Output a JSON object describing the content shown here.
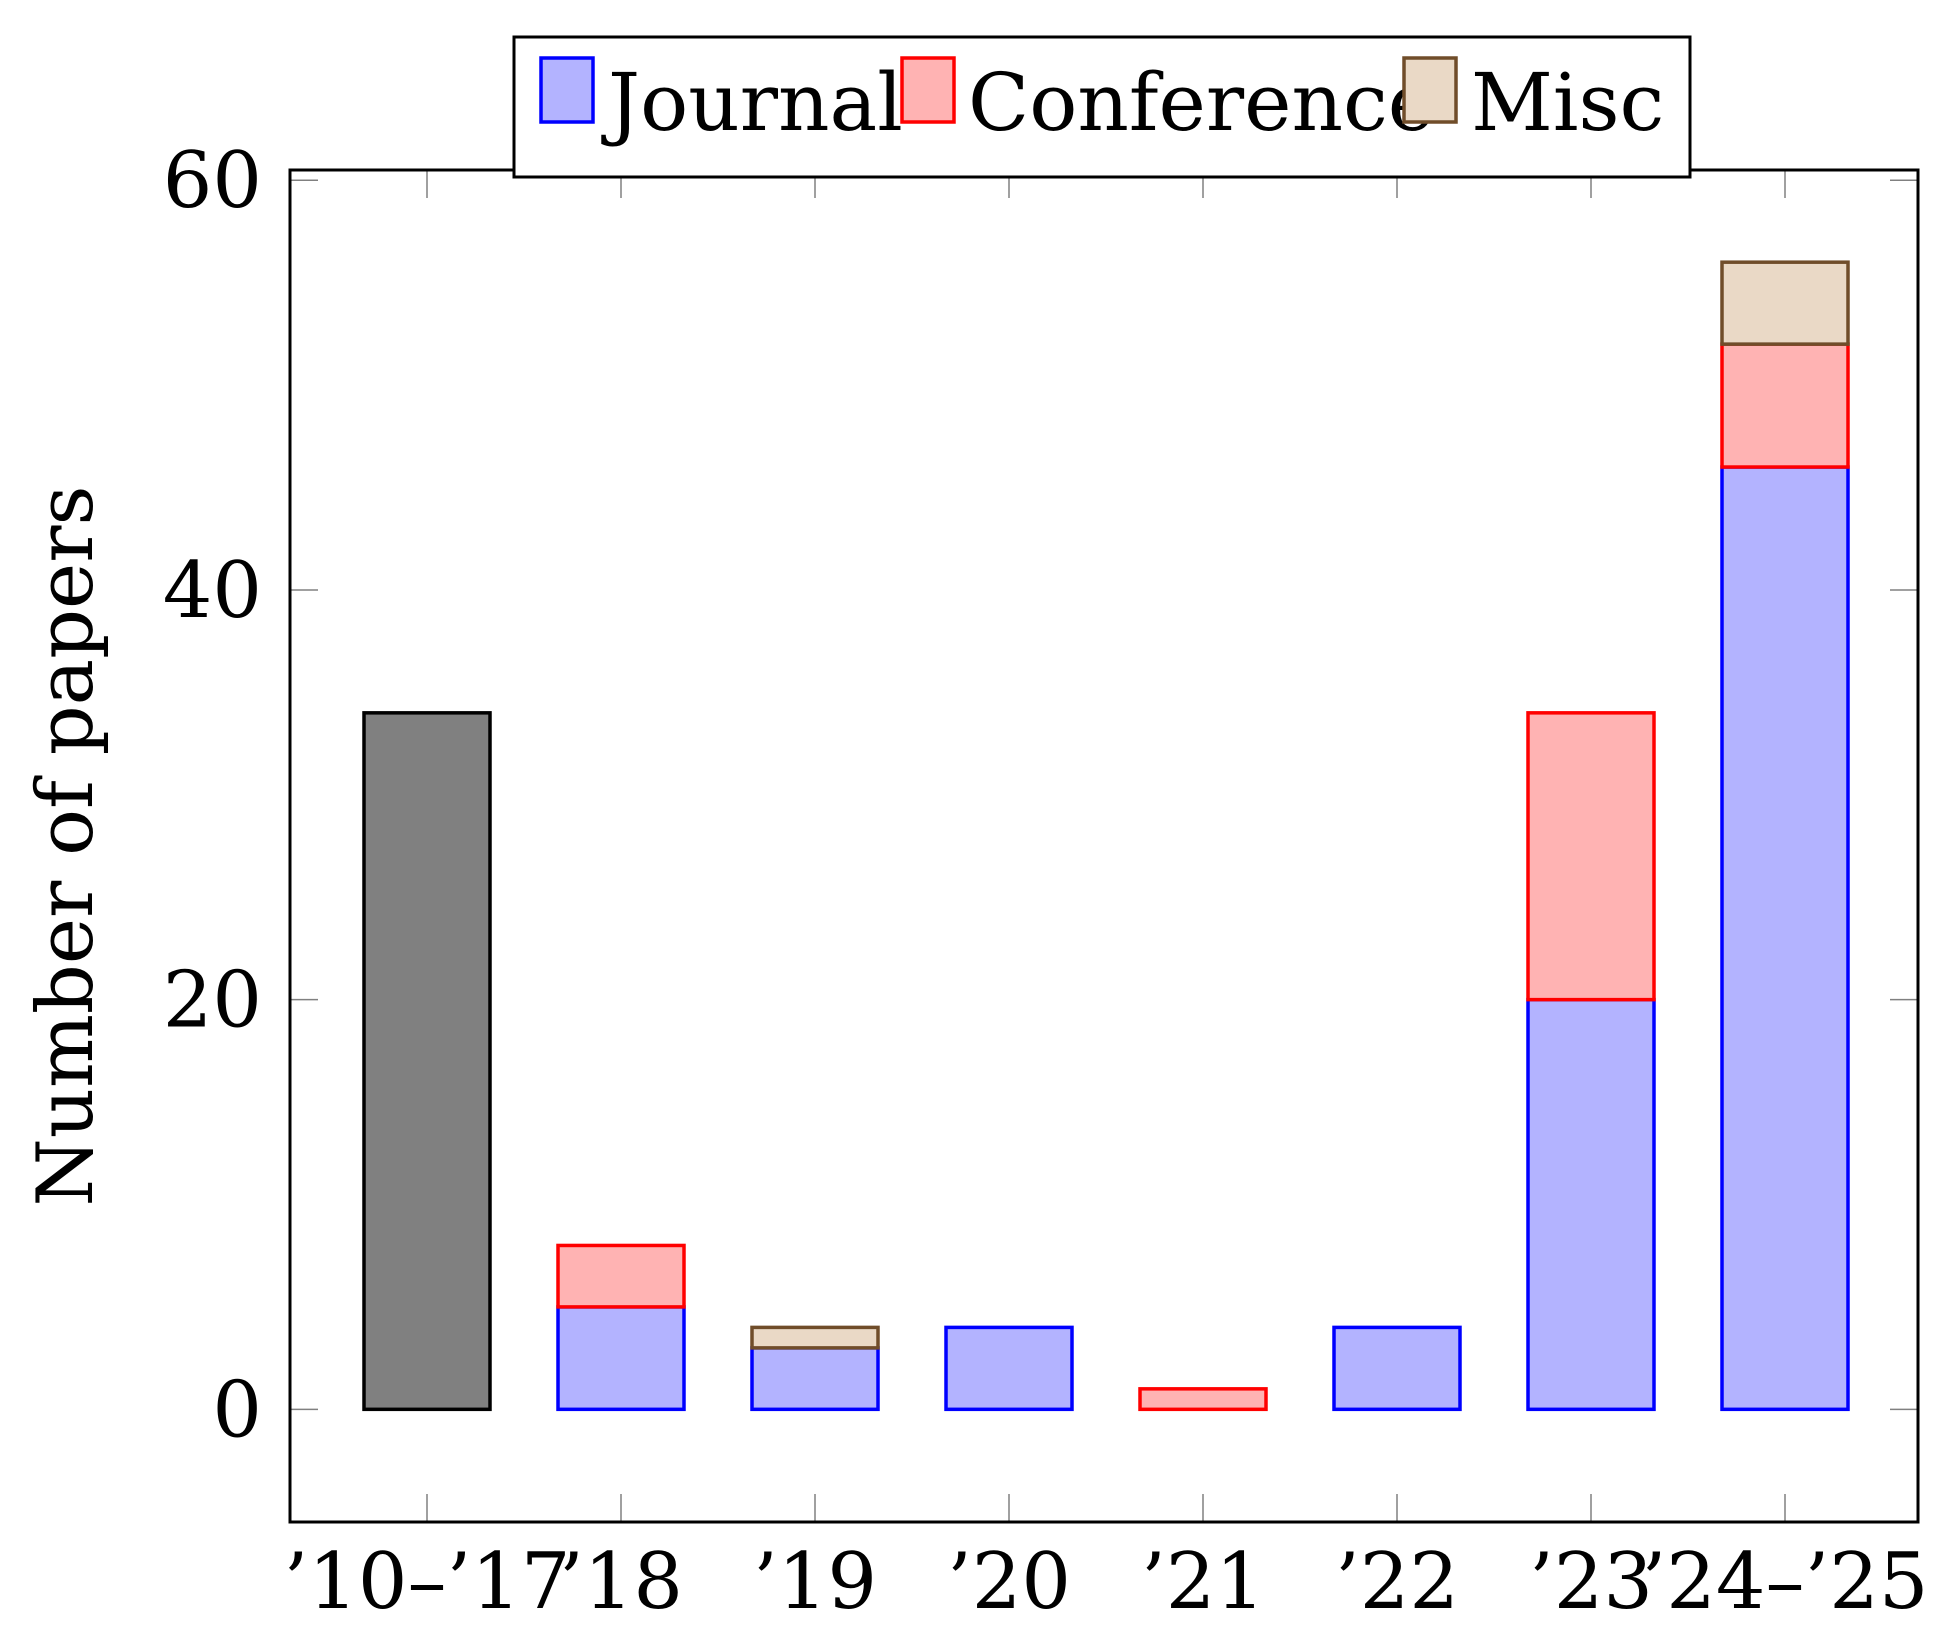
{
  "chart_data": {
    "type": "bar",
    "stacked": true,
    "categories": [
      "’10–’17",
      "’18",
      "’19",
      "’20",
      "’21",
      "’22",
      "’23",
      "’24–’25"
    ],
    "ylabel": "Number of papers",
    "xlabel": "",
    "title": "",
    "ylim": [
      -5.5,
      60.5
    ],
    "yticks": [
      0,
      20,
      40,
      60
    ],
    "grid": false,
    "legend_position": "top-center",
    "total_series": {
      "values": [
        34,
        null,
        null,
        null,
        null,
        null,
        null,
        null
      ],
      "color": "#808080",
      "stroke": "#000000"
    },
    "series": [
      {
        "name": "Journal",
        "values": [
          0,
          5,
          3,
          4,
          0,
          4,
          20,
          46
        ],
        "color": "#b3b3ff",
        "stroke": "#0000ff"
      },
      {
        "name": "Conference",
        "values": [
          0,
          3,
          0,
          0,
          1,
          0,
          14,
          6
        ],
        "color": "#ffb3b3",
        "stroke": "#ff0000"
      },
      {
        "name": "Misc",
        "values": [
          0,
          0,
          1,
          0,
          0,
          0,
          0,
          4
        ],
        "color": "#ead9c6",
        "stroke": "#704d2a"
      }
    ]
  }
}
